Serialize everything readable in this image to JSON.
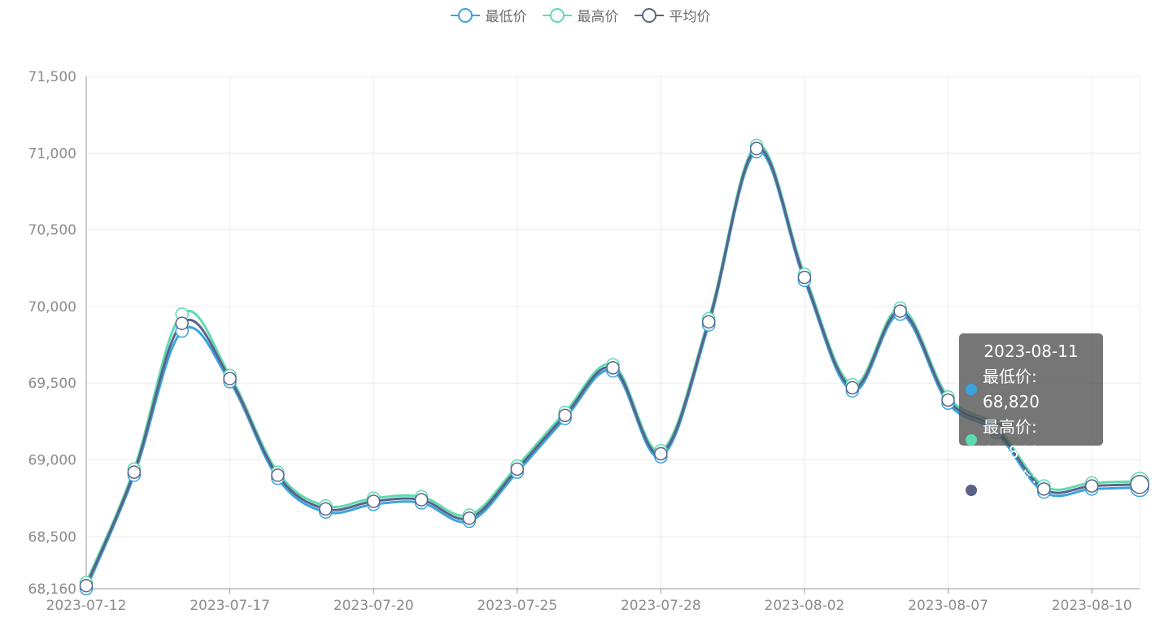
{
  "legend": [
    {
      "label": "最低价",
      "color": "#3ba3e0"
    },
    {
      "label": "最高价",
      "color": "#5cdbb3"
    },
    {
      "label": "平均价",
      "color": "#5b6286"
    }
  ],
  "tooltip": {
    "title": "2023-08-11",
    "rows": [
      {
        "label": "最低价: 68,820",
        "color": "#3ba3e0"
      },
      {
        "label": "最高价: 68,860",
        "color": "#5cdbb3"
      },
      {
        "label": "平均价: 68,840",
        "color": "#5b6286"
      }
    ]
  },
  "chart_data": {
    "type": "line",
    "x": [
      "2023-07-12",
      "2023-07-13",
      "2023-07-14",
      "2023-07-17",
      "2023-07-18",
      "2023-07-19",
      "2023-07-20",
      "2023-07-21",
      "2023-07-24",
      "2023-07-25",
      "2023-07-26",
      "2023-07-27",
      "2023-07-28",
      "2023-07-31",
      "2023-08-01",
      "2023-08-02",
      "2023-08-03",
      "2023-08-04",
      "2023-08-07",
      "2023-08-08",
      "2023-08-09",
      "2023-08-10",
      "2023-08-11"
    ],
    "x_tick_labels": [
      "2023-07-12",
      "2023-07-17",
      "2023-07-20",
      "2023-07-25",
      "2023-07-28",
      "2023-08-02",
      "2023-08-07",
      "2023-08-10"
    ],
    "y_tick_labels": [
      "68,160",
      "68,500",
      "69,000",
      "69,500",
      "70,000",
      "70,500",
      "71,000",
      "71,500"
    ],
    "ylim": [
      68160,
      71500
    ],
    "y_ticks": [
      68160,
      68500,
      69000,
      69500,
      70000,
      70500,
      71000,
      71500
    ],
    "grid": true,
    "legend_position": "top",
    "smooth": true,
    "series": [
      {
        "name": "最低价",
        "color": "#3ba3e0",
        "values": [
          68160,
          68900,
          69840,
          69510,
          68880,
          68660,
          68710,
          68720,
          68600,
          68920,
          69270,
          69580,
          69020,
          69880,
          71010,
          70170,
          69450,
          69950,
          69370,
          69180,
          68790,
          68810,
          68820
        ]
      },
      {
        "name": "最高价",
        "color": "#5cdbb3",
        "values": [
          68200,
          68940,
          69950,
          69550,
          68920,
          68700,
          68750,
          68760,
          68640,
          68960,
          69310,
          69620,
          69060,
          69920,
          71050,
          70210,
          69490,
          69990,
          69410,
          69220,
          68830,
          68850,
          68860
        ]
      },
      {
        "name": "平均价",
        "color": "#5b6286",
        "values": [
          68180,
          68920,
          69890,
          69530,
          68900,
          68680,
          68730,
          68740,
          68620,
          68940,
          69290,
          69600,
          69040,
          69900,
          71030,
          70190,
          69470,
          69970,
          69390,
          69200,
          68810,
          68830,
          68840
        ]
      }
    ],
    "highlighted_index": 22
  }
}
